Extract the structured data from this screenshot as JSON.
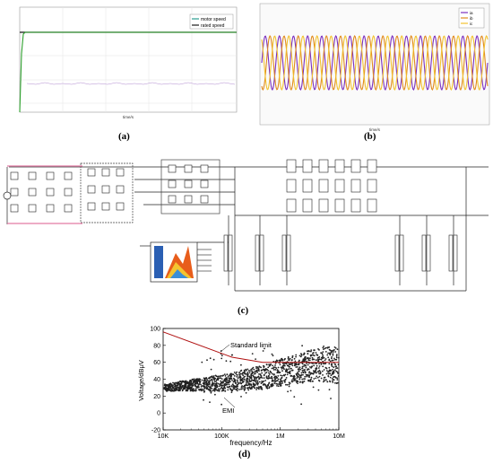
{
  "captions": {
    "a": "(a)",
    "b": "(b)",
    "c": "(c)",
    "d": "(d)"
  },
  "panel_a": {
    "legend": [
      "motor speed",
      "rated speed"
    ],
    "xlabel": "time/s",
    "colors": {
      "motor": "#2ca02c",
      "rated": "#1a1a1a",
      "teal": "#2a9d8f"
    }
  },
  "panel_b": {
    "legend": [
      "ia",
      "ib",
      "ic"
    ],
    "xlabel": "time/s",
    "colors": {
      "ia": "#7b2fbe",
      "ib": "#e08a1e",
      "ic": "#f2c230"
    }
  },
  "panel_d": {
    "xlabel": "frequency/Hz",
    "ylabel": "Voltage/dBμV",
    "annotations": {
      "limit": "Standard limit",
      "emi": "EMI"
    }
  },
  "chart_data": [
    {
      "type": "scatter",
      "title": "",
      "xlabel": "frequency/Hz",
      "ylabel": "Voltage/dBμV",
      "x_scale": "log",
      "xlim": [
        10000,
        10000000
      ],
      "ylim": [
        -20,
        100
      ],
      "x_ticks": [
        {
          "value": 10000,
          "label": "10K"
        },
        {
          "value": 100000,
          "label": "100K"
        },
        {
          "value": 1000000,
          "label": "1M"
        },
        {
          "value": 10000000,
          "label": "10M"
        }
      ],
      "y_ticks": [
        -20,
        0,
        20,
        40,
        60,
        80,
        100
      ],
      "series": [
        {
          "name": "Standard limit",
          "kind": "line",
          "color": "#b01010",
          "x": [
            10000,
            150000,
            500000,
            5000000,
            10000000
          ],
          "y": [
            96,
            66,
            60,
            60,
            60
          ]
        },
        {
          "name": "EMI",
          "kind": "scatter",
          "color": "#222222",
          "x": [
            12000,
            15000,
            20000,
            30000,
            50000,
            80000,
            120000,
            200000,
            300000,
            500000,
            700000,
            1000000,
            2000000,
            3000000,
            5000000,
            7000000,
            10000000
          ],
          "y": [
            30,
            31,
            32,
            33,
            34,
            35,
            36,
            38,
            40,
            42,
            45,
            48,
            52,
            55,
            57,
            58,
            56
          ]
        }
      ],
      "grid": false,
      "legend": "none"
    }
  ]
}
